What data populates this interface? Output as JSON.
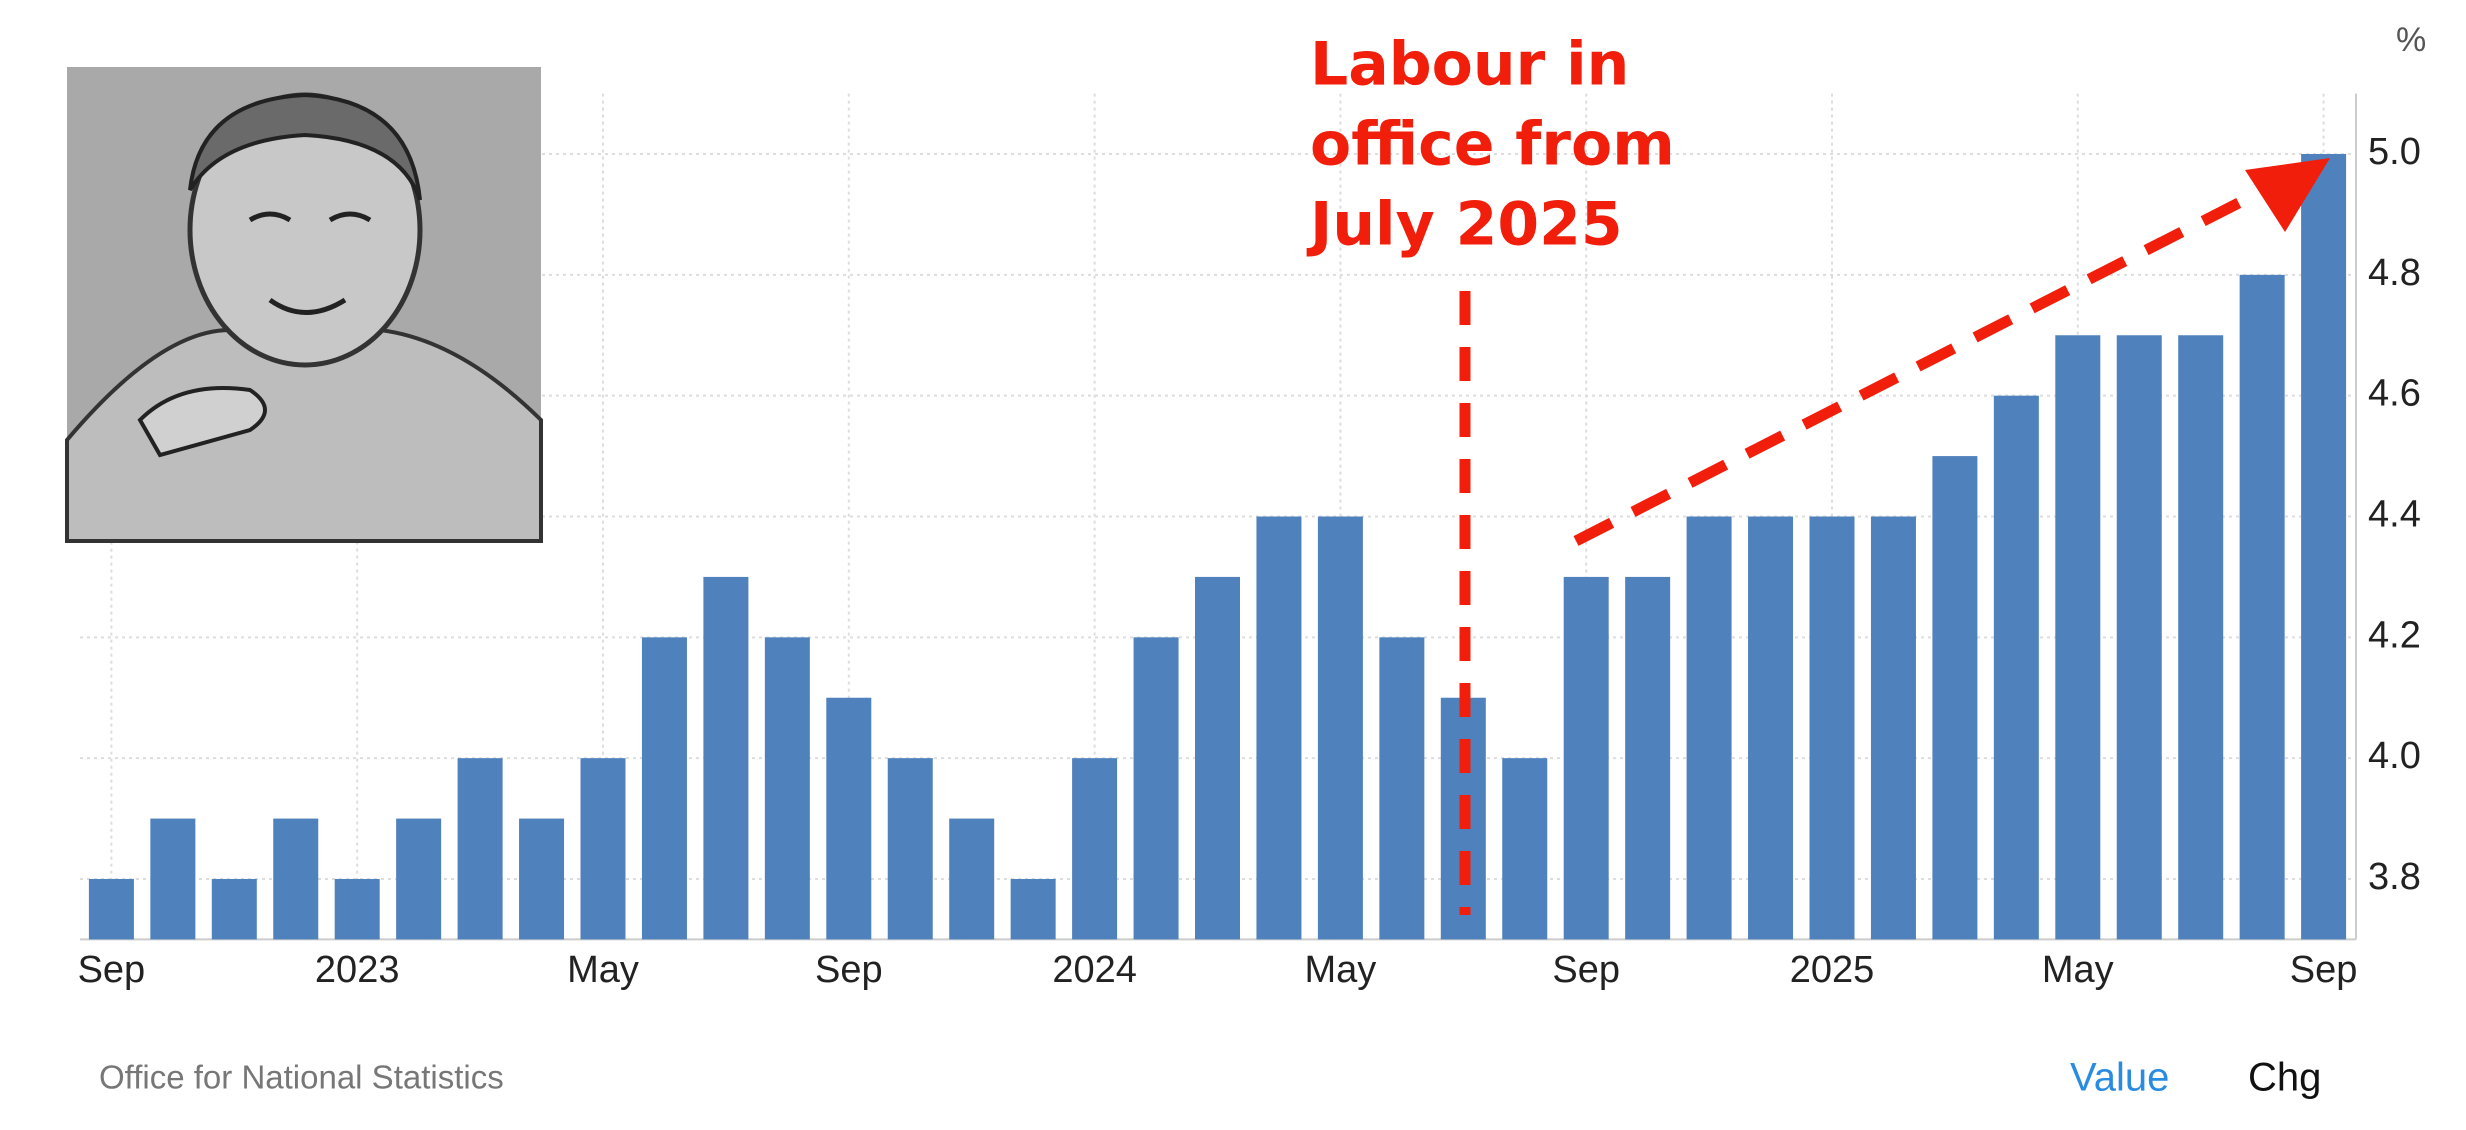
{
  "chart_data": {
    "type": "bar",
    "unit": "%",
    "annotation_lines": [
      "Labour in",
      "office from",
      "July 2025"
    ],
    "source": "Office for National Statistics",
    "tabs": [
      "Value",
      "Chg"
    ],
    "color": "#4f81bd",
    "grid": true,
    "categories": [
      "Sep",
      null,
      null,
      null,
      "2023",
      null,
      null,
      null,
      "May",
      null,
      null,
      null,
      "Sep",
      null,
      null,
      null,
      "2024",
      null,
      null,
      null,
      "May",
      null,
      null,
      null,
      "Sep",
      null,
      null,
      null,
      "2025",
      null,
      null,
      null,
      "May",
      null,
      null,
      null,
      "Sep"
    ],
    "values": [
      3.8,
      3.9,
      3.8,
      3.9,
      3.8,
      3.9,
      4.0,
      3.9,
      4.0,
      4.2,
      4.3,
      4.2,
      4.1,
      4.0,
      3.9,
      3.8,
      4.0,
      4.2,
      4.3,
      4.4,
      4.4,
      4.2,
      4.1,
      4.0,
      4.3,
      4.3,
      4.4,
      4.4,
      4.4,
      4.4,
      4.5,
      4.6,
      4.7,
      4.7,
      4.7,
      4.8,
      5.0
    ],
    "ylim": [
      3.7,
      5.1
    ],
    "yticks": [
      3.8,
      {
        "value": 4.0,
        "label": "4.0"
      },
      4.2,
      4.4,
      4.6,
      4.8,
      {
        "value": 5.0,
        "label": "5.0"
      }
    ]
  }
}
